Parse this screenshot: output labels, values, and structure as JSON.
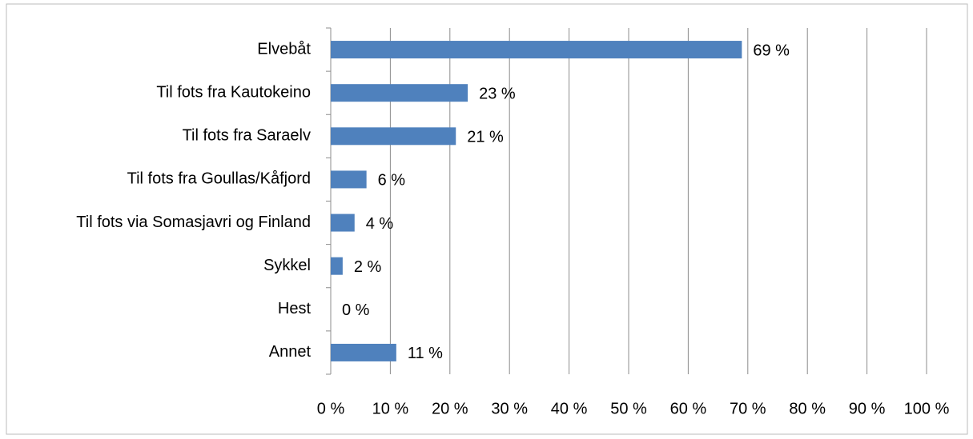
{
  "chart_data": {
    "type": "bar",
    "orientation": "horizontal",
    "categories": [
      "Elvebåt",
      "Til fots fra Kautokeino",
      "Til fots fra Saraelv",
      "Til fots fra Goullas/Kåfjord",
      "Til fots via Somasjavri og Finland",
      "Sykkel",
      "Hest",
      "Annet"
    ],
    "values": [
      69,
      23,
      21,
      6,
      4,
      2,
      0,
      11
    ],
    "value_labels": [
      "69 %",
      "23 %",
      "21 %",
      "6 %",
      "4 %",
      "2 %",
      "0 %",
      "11 %"
    ],
    "color": "#4f81bd",
    "xlim": [
      0,
      100
    ],
    "xticks": [
      {
        "value": 0,
        "label": "0 %"
      },
      {
        "value": 10,
        "label": "10 %"
      },
      {
        "value": 20,
        "label": "20 %"
      },
      {
        "value": 30,
        "label": "30 %"
      },
      {
        "value": 40,
        "label": "40 %"
      },
      {
        "value": 50,
        "label": "50 %"
      },
      {
        "value": 60,
        "label": "60 %"
      },
      {
        "value": 70,
        "label": "70 %"
      },
      {
        "value": 80,
        "label": "80 %"
      },
      {
        "value": 90,
        "label": "90 %"
      },
      {
        "value": 100,
        "label": "100 %"
      }
    ],
    "grid": true
  }
}
